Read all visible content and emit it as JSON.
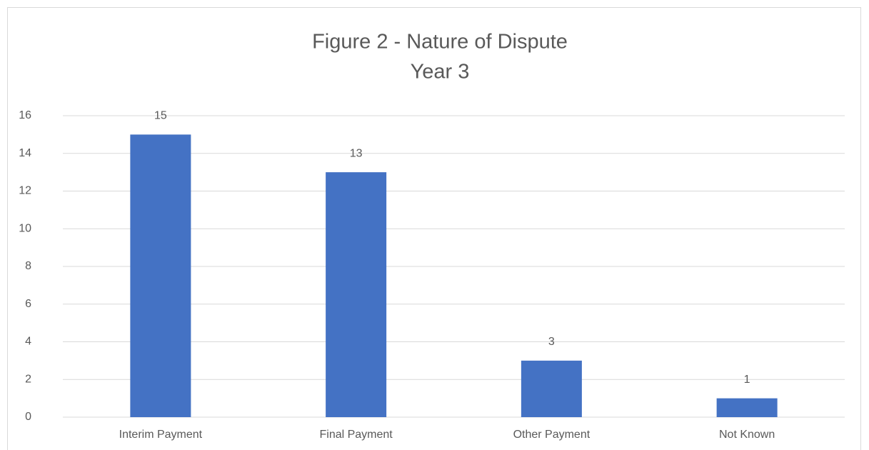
{
  "chart_data": {
    "type": "bar",
    "title": "Figure 2 - Nature of Dispute",
    "subtitle": "Year 3",
    "categories": [
      "Interim Payment",
      "Final Payment",
      "Other Payment",
      "Not Known"
    ],
    "values": [
      15,
      13,
      3,
      1
    ],
    "color": "#4472c4",
    "ylim": [
      0,
      16
    ],
    "yticks": [
      0,
      2,
      4,
      6,
      8,
      10,
      12,
      14,
      16
    ],
    "grid": true,
    "data_labels": true
  }
}
